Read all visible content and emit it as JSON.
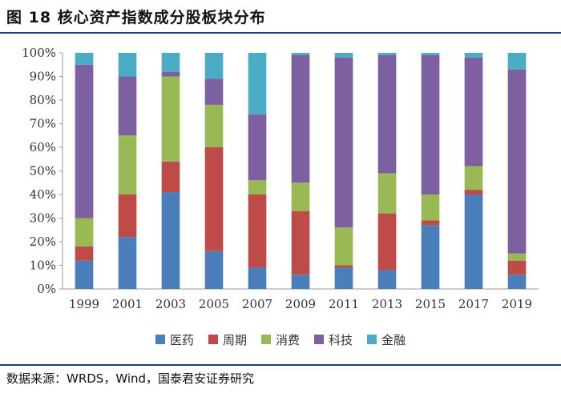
{
  "page": {
    "title": "图 18 核心资产指数成分股板块分布",
    "source": "数据来源：WRDS，Wind，国泰君安证券研究"
  },
  "chart_data": {
    "type": "bar",
    "stacked": true,
    "title": "图 18 核心资产指数成分股板块分布",
    "xlabel": "",
    "ylabel": "",
    "ylim": [
      0,
      100
    ],
    "yticks": [
      "0%",
      "10%",
      "20%",
      "30%",
      "40%",
      "50%",
      "60%",
      "70%",
      "80%",
      "90%",
      "100%"
    ],
    "categories": [
      "1999",
      "2001",
      "2003",
      "2005",
      "2007",
      "2009",
      "2011",
      "2013",
      "2015",
      "2017",
      "2019"
    ],
    "series": [
      {
        "name": "医药",
        "color": "#4a7ebb",
        "values": [
          12,
          22,
          41,
          16,
          9,
          6,
          9,
          8,
          27,
          40,
          6
        ]
      },
      {
        "name": "周期",
        "color": "#be4b48",
        "values": [
          6,
          18,
          13,
          44,
          31,
          27,
          1,
          24,
          2,
          2,
          6
        ]
      },
      {
        "name": "消费",
        "color": "#98b954",
        "values": [
          12,
          25,
          36,
          18,
          6,
          12,
          16,
          17,
          11,
          10,
          3
        ]
      },
      {
        "name": "科技",
        "color": "#7d60a0",
        "values": [
          65,
          25,
          2,
          11,
          28,
          54,
          72,
          50,
          59,
          46,
          78
        ]
      },
      {
        "name": "金融",
        "color": "#4bacc6",
        "values": [
          5,
          10,
          8,
          11,
          26,
          1,
          2,
          1,
          1,
          2,
          7
        ]
      }
    ]
  }
}
